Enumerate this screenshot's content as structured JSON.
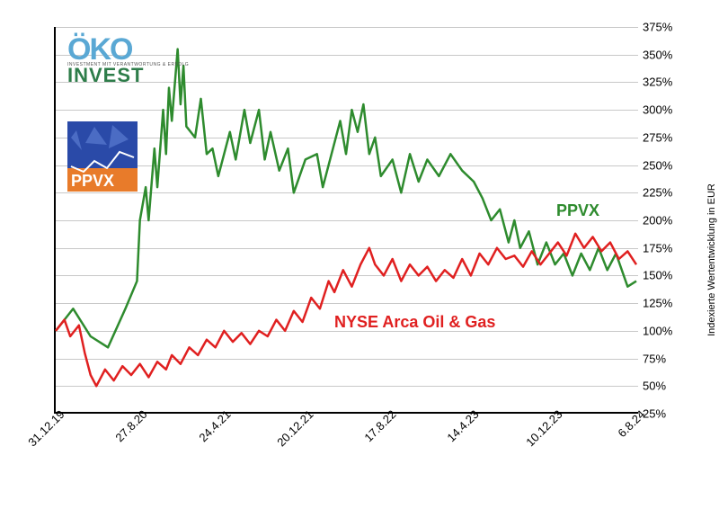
{
  "chart": {
    "type": "line",
    "background_color": "#ffffff",
    "grid_color": "#c8c8c8",
    "axis_color": "#000000",
    "y": {
      "min": 25,
      "max": 375,
      "tick_step": 25,
      "ticks": [
        "25%",
        "50%",
        "75%",
        "100%",
        "125%",
        "150%",
        "175%",
        "200%",
        "225%",
        "250%",
        "275%",
        "300%",
        "325%",
        "350%",
        "375%"
      ],
      "side": "right",
      "label": "Indexierte Wertentwicklung in EUR",
      "label_fontsize": 11
    },
    "x": {
      "ticks": [
        "31.12.19",
        "27.8.20",
        "24.4.21",
        "20.12.21",
        "17.8.22",
        "14.4.23",
        "10.12.23",
        "6.8.24"
      ],
      "rotation_deg": -45
    },
    "series": [
      {
        "name": "PPVX",
        "label": "PPVX",
        "color": "#2e8b2e",
        "line_width": 2.5,
        "label_pos_pct": {
          "x": 0.86,
          "y": 0.55
        },
        "data": [
          [
            0,
            100
          ],
          [
            0.03,
            120
          ],
          [
            0.06,
            95
          ],
          [
            0.09,
            85
          ],
          [
            0.12,
            120
          ],
          [
            0.14,
            145
          ],
          [
            0.145,
            200
          ],
          [
            0.155,
            230
          ],
          [
            0.16,
            200
          ],
          [
            0.17,
            265
          ],
          [
            0.175,
            230
          ],
          [
            0.185,
            300
          ],
          [
            0.19,
            260
          ],
          [
            0.195,
            320
          ],
          [
            0.2,
            290
          ],
          [
            0.21,
            355
          ],
          [
            0.215,
            305
          ],
          [
            0.22,
            340
          ],
          [
            0.225,
            285
          ],
          [
            0.24,
            275
          ],
          [
            0.25,
            310
          ],
          [
            0.26,
            260
          ],
          [
            0.27,
            265
          ],
          [
            0.28,
            240
          ],
          [
            0.3,
            280
          ],
          [
            0.31,
            255
          ],
          [
            0.325,
            300
          ],
          [
            0.335,
            270
          ],
          [
            0.35,
            300
          ],
          [
            0.36,
            255
          ],
          [
            0.37,
            280
          ],
          [
            0.385,
            245
          ],
          [
            0.4,
            265
          ],
          [
            0.41,
            225
          ],
          [
            0.43,
            255
          ],
          [
            0.45,
            260
          ],
          [
            0.46,
            230
          ],
          [
            0.475,
            260
          ],
          [
            0.49,
            290
          ],
          [
            0.5,
            260
          ],
          [
            0.51,
            300
          ],
          [
            0.52,
            280
          ],
          [
            0.53,
            305
          ],
          [
            0.54,
            260
          ],
          [
            0.55,
            275
          ],
          [
            0.56,
            240
          ],
          [
            0.58,
            255
          ],
          [
            0.595,
            225
          ],
          [
            0.61,
            260
          ],
          [
            0.625,
            235
          ],
          [
            0.64,
            255
          ],
          [
            0.66,
            240
          ],
          [
            0.68,
            260
          ],
          [
            0.7,
            245
          ],
          [
            0.72,
            235
          ],
          [
            0.735,
            220
          ],
          [
            0.75,
            200
          ],
          [
            0.765,
            210
          ],
          [
            0.78,
            180
          ],
          [
            0.79,
            200
          ],
          [
            0.8,
            175
          ],
          [
            0.815,
            190
          ],
          [
            0.83,
            160
          ],
          [
            0.845,
            180
          ],
          [
            0.86,
            160
          ],
          [
            0.875,
            170
          ],
          [
            0.89,
            150
          ],
          [
            0.905,
            170
          ],
          [
            0.92,
            155
          ],
          [
            0.935,
            175
          ],
          [
            0.95,
            155
          ],
          [
            0.965,
            170
          ],
          [
            0.985,
            140
          ],
          [
            1.0,
            145
          ]
        ]
      },
      {
        "name": "NYSE Arca Oil & Gas",
        "label": "NYSE Arca Oil & Gas",
        "color": "#e02020",
        "line_width": 2.5,
        "label_pos_pct": {
          "x": 0.48,
          "y": 0.26
        },
        "data": [
          [
            0,
            100
          ],
          [
            0.015,
            110
          ],
          [
            0.025,
            95
          ],
          [
            0.04,
            105
          ],
          [
            0.05,
            80
          ],
          [
            0.06,
            60
          ],
          [
            0.07,
            50
          ],
          [
            0.085,
            65
          ],
          [
            0.1,
            55
          ],
          [
            0.115,
            68
          ],
          [
            0.13,
            60
          ],
          [
            0.145,
            70
          ],
          [
            0.16,
            58
          ],
          [
            0.175,
            72
          ],
          [
            0.19,
            65
          ],
          [
            0.2,
            78
          ],
          [
            0.215,
            70
          ],
          [
            0.23,
            85
          ],
          [
            0.245,
            78
          ],
          [
            0.26,
            92
          ],
          [
            0.275,
            85
          ],
          [
            0.29,
            100
          ],
          [
            0.305,
            90
          ],
          [
            0.32,
            98
          ],
          [
            0.335,
            88
          ],
          [
            0.35,
            100
          ],
          [
            0.365,
            95
          ],
          [
            0.38,
            110
          ],
          [
            0.395,
            100
          ],
          [
            0.41,
            118
          ],
          [
            0.425,
            108
          ],
          [
            0.44,
            130
          ],
          [
            0.455,
            120
          ],
          [
            0.47,
            145
          ],
          [
            0.48,
            135
          ],
          [
            0.495,
            155
          ],
          [
            0.51,
            140
          ],
          [
            0.525,
            160
          ],
          [
            0.54,
            175
          ],
          [
            0.55,
            160
          ],
          [
            0.565,
            150
          ],
          [
            0.58,
            165
          ],
          [
            0.595,
            145
          ],
          [
            0.61,
            160
          ],
          [
            0.625,
            150
          ],
          [
            0.64,
            158
          ],
          [
            0.655,
            145
          ],
          [
            0.67,
            155
          ],
          [
            0.685,
            148
          ],
          [
            0.7,
            165
          ],
          [
            0.715,
            150
          ],
          [
            0.73,
            170
          ],
          [
            0.745,
            160
          ],
          [
            0.76,
            175
          ],
          [
            0.775,
            165
          ],
          [
            0.79,
            168
          ],
          [
            0.805,
            158
          ],
          [
            0.82,
            172
          ],
          [
            0.835,
            160
          ],
          [
            0.85,
            170
          ],
          [
            0.865,
            180
          ],
          [
            0.88,
            168
          ],
          [
            0.895,
            188
          ],
          [
            0.91,
            175
          ],
          [
            0.925,
            185
          ],
          [
            0.94,
            172
          ],
          [
            0.955,
            180
          ],
          [
            0.97,
            165
          ],
          [
            0.985,
            172
          ],
          [
            1.0,
            160
          ]
        ]
      }
    ]
  },
  "logos": {
    "oko_invest": {
      "line1": "ÖKO",
      "line2": "INVEST",
      "tagline": "INVESTMENT MIT VERANTWORTUNG & ERFOLG",
      "color1": "#5aa8d4",
      "color2": "#2e7d4a"
    },
    "ppvx": {
      "text": "PPVX",
      "bg1": "#2a4aa8",
      "bg2": "#e87b2a",
      "text_color": "#ffffff"
    }
  }
}
